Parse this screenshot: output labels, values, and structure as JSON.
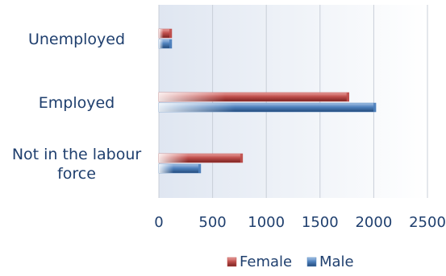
{
  "chart_data": {
    "type": "bar",
    "orientation": "horizontal",
    "categories": [
      "Unemployed",
      "Employed",
      "Not in the labour force"
    ],
    "category_lines": [
      [
        "Unemployed"
      ],
      [
        "Employed"
      ],
      [
        "Not in the labour",
        "force"
      ]
    ],
    "series": [
      {
        "name": "Female",
        "values": [
          120,
          1770,
          780
        ],
        "color": "#c0504d"
      },
      {
        "name": "Male",
        "values": [
          120,
          2020,
          390
        ],
        "color": "#4f81bd"
      }
    ],
    "xlim": [
      0,
      2500
    ],
    "x_ticks": [
      0,
      500,
      1000,
      1500,
      2000,
      2500
    ],
    "grid": true,
    "legend_position": "bottom",
    "title": "",
    "xlabel": "",
    "ylabel": ""
  }
}
